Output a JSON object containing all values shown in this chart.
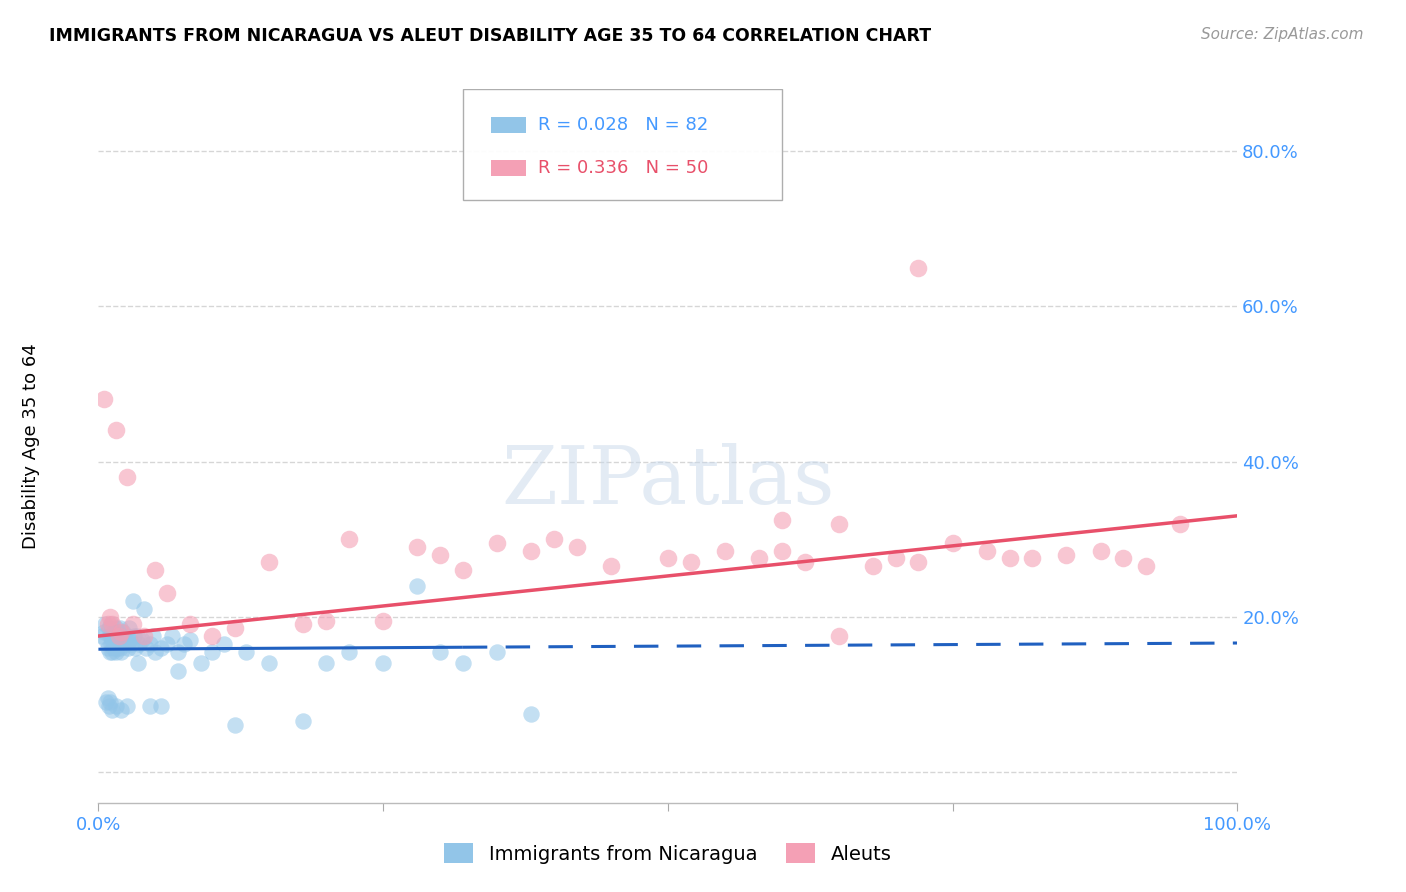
{
  "title": "IMMIGRANTS FROM NICARAGUA VS ALEUT DISABILITY AGE 35 TO 64 CORRELATION CHART",
  "source": "Source: ZipAtlas.com",
  "ylabel": "Disability Age 35 to 64",
  "blue_R": 0.028,
  "blue_N": 82,
  "pink_R": 0.336,
  "pink_N": 50,
  "blue_color": "#92c5e8",
  "pink_color": "#f4a0b5",
  "blue_line_color": "#2060c0",
  "pink_line_color": "#e8506a",
  "tick_color": "#4499ff",
  "grid_color": "#cccccc",
  "watermark_color": "#c8d8ea",
  "blue_scatter_x": [
    0.003,
    0.005,
    0.006,
    0.007,
    0.008,
    0.009,
    0.01,
    0.01,
    0.011,
    0.011,
    0.012,
    0.012,
    0.013,
    0.013,
    0.014,
    0.014,
    0.015,
    0.015,
    0.016,
    0.016,
    0.017,
    0.017,
    0.018,
    0.018,
    0.019,
    0.019,
    0.02,
    0.02,
    0.021,
    0.021,
    0.022,
    0.023,
    0.024,
    0.025,
    0.026,
    0.027,
    0.028,
    0.029,
    0.03,
    0.031,
    0.032,
    0.034,
    0.036,
    0.038,
    0.04,
    0.042,
    0.045,
    0.048,
    0.05,
    0.055,
    0.06,
    0.065,
    0.07,
    0.075,
    0.08,
    0.09,
    0.1,
    0.11,
    0.12,
    0.13,
    0.15,
    0.18,
    0.2,
    0.22,
    0.25,
    0.28,
    0.3,
    0.32,
    0.35,
    0.38,
    0.007,
    0.008,
    0.009,
    0.01,
    0.012,
    0.015,
    0.02,
    0.025,
    0.035,
    0.045,
    0.055,
    0.07
  ],
  "blue_scatter_y": [
    0.175,
    0.18,
    0.19,
    0.17,
    0.16,
    0.185,
    0.175,
    0.155,
    0.19,
    0.165,
    0.17,
    0.155,
    0.175,
    0.16,
    0.18,
    0.165,
    0.185,
    0.155,
    0.175,
    0.16,
    0.17,
    0.18,
    0.165,
    0.175,
    0.16,
    0.185,
    0.17,
    0.155,
    0.175,
    0.165,
    0.18,
    0.17,
    0.165,
    0.175,
    0.16,
    0.185,
    0.17,
    0.165,
    0.22,
    0.175,
    0.16,
    0.175,
    0.165,
    0.17,
    0.21,
    0.16,
    0.165,
    0.175,
    0.155,
    0.16,
    0.165,
    0.175,
    0.155,
    0.165,
    0.17,
    0.14,
    0.155,
    0.165,
    0.06,
    0.155,
    0.14,
    0.065,
    0.14,
    0.155,
    0.14,
    0.24,
    0.155,
    0.14,
    0.155,
    0.075,
    0.09,
    0.095,
    0.085,
    0.09,
    0.08,
    0.085,
    0.08,
    0.085,
    0.14,
    0.085,
    0.085,
    0.13
  ],
  "pink_scatter_x": [
    0.005,
    0.008,
    0.01,
    0.012,
    0.015,
    0.018,
    0.02,
    0.025,
    0.03,
    0.04,
    0.05,
    0.06,
    0.08,
    0.1,
    0.12,
    0.15,
    0.18,
    0.2,
    0.22,
    0.25,
    0.28,
    0.3,
    0.32,
    0.35,
    0.38,
    0.4,
    0.42,
    0.45,
    0.5,
    0.52,
    0.55,
    0.58,
    0.6,
    0.62,
    0.65,
    0.68,
    0.7,
    0.72,
    0.75,
    0.78,
    0.8,
    0.82,
    0.85,
    0.88,
    0.9,
    0.92,
    0.95,
    0.6,
    0.65,
    0.72
  ],
  "pink_scatter_y": [
    0.48,
    0.19,
    0.2,
    0.19,
    0.44,
    0.175,
    0.18,
    0.38,
    0.19,
    0.175,
    0.26,
    0.23,
    0.19,
    0.175,
    0.185,
    0.27,
    0.19,
    0.195,
    0.3,
    0.195,
    0.29,
    0.28,
    0.26,
    0.295,
    0.285,
    0.3,
    0.29,
    0.265,
    0.275,
    0.27,
    0.285,
    0.275,
    0.285,
    0.27,
    0.175,
    0.265,
    0.275,
    0.27,
    0.295,
    0.285,
    0.275,
    0.275,
    0.28,
    0.285,
    0.275,
    0.265,
    0.32,
    0.325,
    0.32,
    0.65
  ]
}
